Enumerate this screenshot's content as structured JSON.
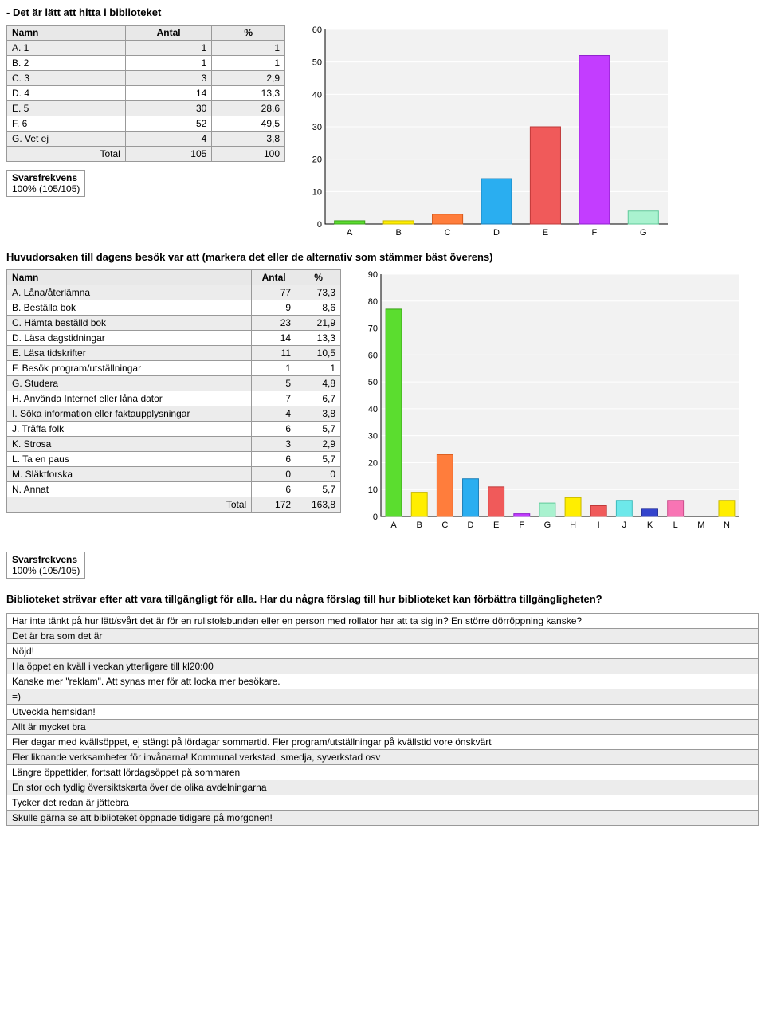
{
  "section1": {
    "title": "- Det är lätt att hitta i biblioteket",
    "table": {
      "columns": [
        "Namn",
        "Antal",
        "%"
      ],
      "rows": [
        [
          "A. 1",
          "1",
          "1"
        ],
        [
          "B. 2",
          "1",
          "1"
        ],
        [
          "C. 3",
          "3",
          "2,9"
        ],
        [
          "D. 4",
          "14",
          "13,3"
        ],
        [
          "E. 5",
          "30",
          "28,6"
        ],
        [
          "F. 6",
          "52",
          "49,5"
        ],
        [
          "G. Vet ej",
          "4",
          "3,8"
        ]
      ],
      "total": [
        "Total",
        "105",
        "100"
      ]
    },
    "chart": {
      "type": "bar",
      "categories": [
        "A",
        "B",
        "C",
        "D",
        "E",
        "F",
        "G"
      ],
      "values": [
        1,
        1,
        3,
        14,
        30,
        52,
        4
      ],
      "bar_fill": [
        "#5bdd2f",
        "#ffee00",
        "#ff7d3c",
        "#2aaef0",
        "#f05a5a",
        "#c33dff",
        "#a9f2cf"
      ],
      "bar_stroke": [
        "#3aa018",
        "#c9b900",
        "#d55a1d",
        "#1a7fb8",
        "#c03a3a",
        "#8e1dcc",
        "#5fc99a"
      ],
      "ymax": 60,
      "ytick_step": 10,
      "plot_bg": "#f2f2f2",
      "axis_color": "#000",
      "grid_color": "#ffffff",
      "label_fontsize": 11
    },
    "svar": {
      "heading": "Svarsfrekvens",
      "value": "100% (105/105)"
    }
  },
  "section2": {
    "title": "Huvudorsaken till dagens besök var att (markera det eller de alternativ som stämmer bäst överens)",
    "table": {
      "columns": [
        "Namn",
        "Antal",
        "%"
      ],
      "rows": [
        [
          "A. Låna/återlämna",
          "77",
          "73,3"
        ],
        [
          "B. Beställa bok",
          "9",
          "8,6"
        ],
        [
          "C. Hämta beställd bok",
          "23",
          "21,9"
        ],
        [
          "D. Läsa dagstidningar",
          "14",
          "13,3"
        ],
        [
          "E. Läsa tidskrifter",
          "11",
          "10,5"
        ],
        [
          "F. Besök program/utställningar",
          "1",
          "1"
        ],
        [
          "G. Studera",
          "5",
          "4,8"
        ],
        [
          "H. Använda Internet eller låna dator",
          "7",
          "6,7"
        ],
        [
          "I. Söka information eller faktaupplysningar",
          "4",
          "3,8"
        ],
        [
          "J. Träffa folk",
          "6",
          "5,7"
        ],
        [
          "K. Strosa",
          "3",
          "2,9"
        ],
        [
          "L. Ta en paus",
          "6",
          "5,7"
        ],
        [
          "M. Släktforska",
          "0",
          "0"
        ],
        [
          "N. Annat",
          "6",
          "5,7"
        ]
      ],
      "total": [
        "Total",
        "172",
        "163,8"
      ]
    },
    "chart": {
      "type": "bar",
      "categories": [
        "A",
        "B",
        "C",
        "D",
        "E",
        "F",
        "G",
        "H",
        "I",
        "J",
        "K",
        "L",
        "M",
        "N"
      ],
      "values": [
        77,
        9,
        23,
        14,
        11,
        1,
        5,
        7,
        4,
        6,
        3,
        6,
        0,
        6
      ],
      "bar_fill": [
        "#5bdd2f",
        "#ffee00",
        "#ff7d3c",
        "#2aaef0",
        "#f05a5a",
        "#c33dff",
        "#a9f2cf",
        "#ffee00",
        "#f05a5a",
        "#6de8ea",
        "#3344cc",
        "#f874b4",
        "#808080",
        "#ffee00"
      ],
      "bar_stroke": [
        "#3aa018",
        "#c9b900",
        "#d55a1d",
        "#1a7fb8",
        "#c03a3a",
        "#8e1dcc",
        "#5fc99a",
        "#c9b900",
        "#c03a3a",
        "#3cbcbc",
        "#222e99",
        "#cc4e8c",
        "#555",
        "#c9b900"
      ],
      "ymax": 90,
      "ytick_step": 10,
      "plot_bg": "#f2f2f2",
      "axis_color": "#000",
      "grid_color": "#ffffff",
      "label_fontsize": 11
    },
    "svar": {
      "heading": "Svarsfrekvens",
      "value": "100% (105/105)"
    }
  },
  "section3": {
    "question": "Biblioteket strävar efter att vara tillgängligt för alla. Har du några förslag till hur biblioteket kan förbättra tillgängligheten?",
    "responses": [
      "Har inte tänkt på hur lätt/svårt det är för en rullstolsbunden eller en person med rollator har att ta sig in? En större dörröppning kanske?",
      "Det är bra som det är",
      "Nöjd!",
      "Ha öppet en kväll i veckan ytterligare till kl20:00",
      "Kanske mer \"reklam\". Att synas mer för att locka mer besökare.",
      "=)",
      "Utveckla hemsidan!",
      "Allt är mycket bra",
      "Fler dagar med kvällsöppet, ej stängt på lördagar sommartid. Fler program/utställningar på kvällstid vore önskvärt",
      "Fler liknande verksamheter för invånarna! Kommunal verkstad, smedja, syverkstad osv",
      "Längre öppettider, fortsatt lördagsöppet på sommaren",
      "En stor och tydlig översiktskarta över de olika avdelningarna",
      "Tycker det redan är jättebra",
      "Skulle gärna se att biblioteket öppnade tidigare på morgonen!"
    ]
  },
  "ui": {
    "total_label": "Total"
  }
}
